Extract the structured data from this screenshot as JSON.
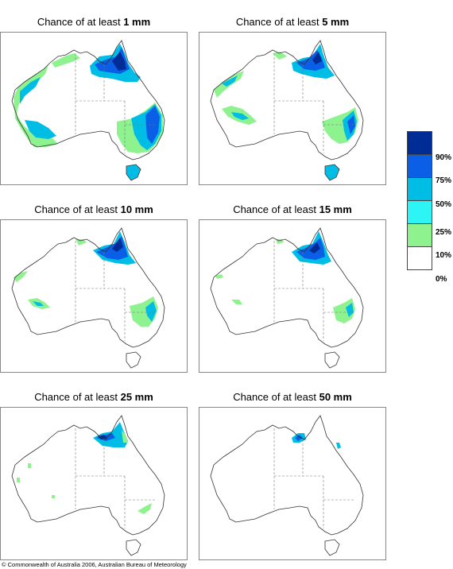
{
  "panels": [
    {
      "prefix": "Chance of at least ",
      "amount": "1 mm"
    },
    {
      "prefix": "Chance of at least ",
      "amount": "5 mm"
    },
    {
      "prefix": "Chance of at least ",
      "amount": "10 mm"
    },
    {
      "prefix": "Chance of at least ",
      "amount": "15 mm"
    },
    {
      "prefix": "Chance of at least ",
      "amount": "25 mm"
    },
    {
      "prefix": "Chance of at least ",
      "amount": "50 mm"
    }
  ],
  "legend": {
    "labels": [
      "90%",
      "75%",
      "50%",
      "25%",
      "10%",
      "0%"
    ],
    "colors": [
      "#002c96",
      "#0a5fe6",
      "#00bde6",
      "#2ef5f5",
      "#8ef28e",
      "#ffffff"
    ]
  },
  "footer": "© Commonwealth of Australia 2006, Australian Bureau of Meteorology"
}
